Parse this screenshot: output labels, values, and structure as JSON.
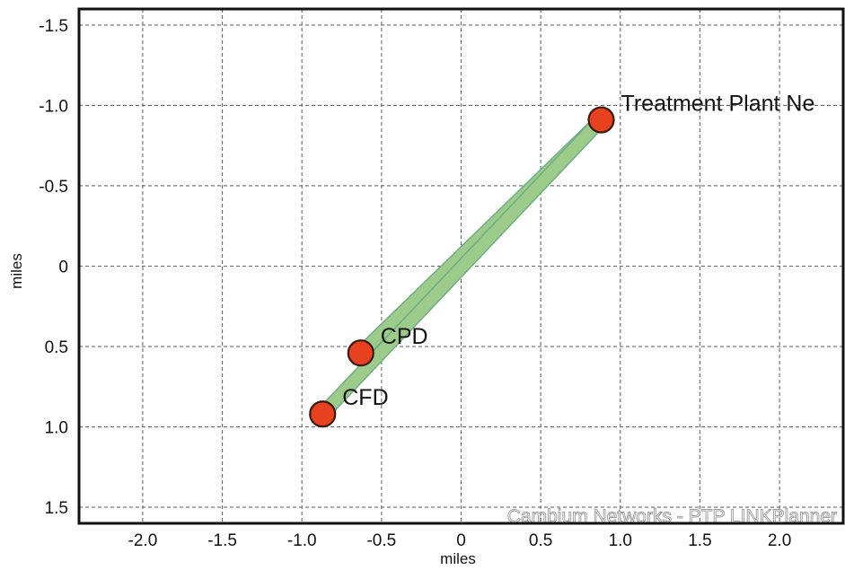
{
  "chart_data": {
    "type": "scatter",
    "xlabel": "miles",
    "ylabel": "miles",
    "xlim": [
      -2.4,
      2.4
    ],
    "ylim": [
      -1.6,
      1.6
    ],
    "y_inverted": true,
    "grid": true,
    "x_ticks": [
      -2.0,
      -1.5,
      -1.0,
      -0.5,
      0,
      0.5,
      1.0,
      1.5,
      2.0
    ],
    "x_tick_labels": [
      "-2.0",
      "-1.5",
      "-1.0",
      "-0.5",
      "0",
      "0.5",
      "1.0",
      "1.5",
      "2.0"
    ],
    "y_ticks": [
      -1.5,
      -1.0,
      -0.5,
      0,
      0.5,
      1.0,
      1.5
    ],
    "y_tick_labels": [
      "-1.5",
      "-1.0",
      "-0.5",
      "0",
      "0.5",
      "1.0",
      "1.5"
    ],
    "points": [
      {
        "label": "Treatment Plant Ne",
        "x": 0.88,
        "y": -0.91
      },
      {
        "label": "CPD",
        "x": -0.63,
        "y": 0.54
      },
      {
        "label": "CFD",
        "x": -0.87,
        "y": 0.92
      }
    ],
    "links": [
      {
        "from": 0,
        "to": 1
      },
      {
        "from": 0,
        "to": 2
      }
    ],
    "watermark": "Cambium Networks - PTP LINKPlanner",
    "colors": {
      "point_fill": "#e8411f",
      "point_stroke": "#3a1a10",
      "link": "#9ccb8a",
      "link_edge": "#6fae86",
      "grid": "#6a6a6a",
      "frame": "#111111"
    }
  }
}
